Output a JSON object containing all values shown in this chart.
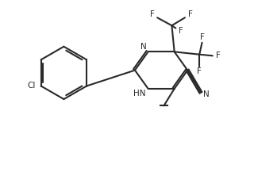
{
  "bg_color": "#ffffff",
  "line_color": "#2a2a2a",
  "lw": 1.5,
  "figsize": [
    3.2,
    2.17
  ],
  "dpi": 100,
  "xlim": [
    0,
    9.5
  ],
  "ylim": [
    0,
    6.5
  ]
}
